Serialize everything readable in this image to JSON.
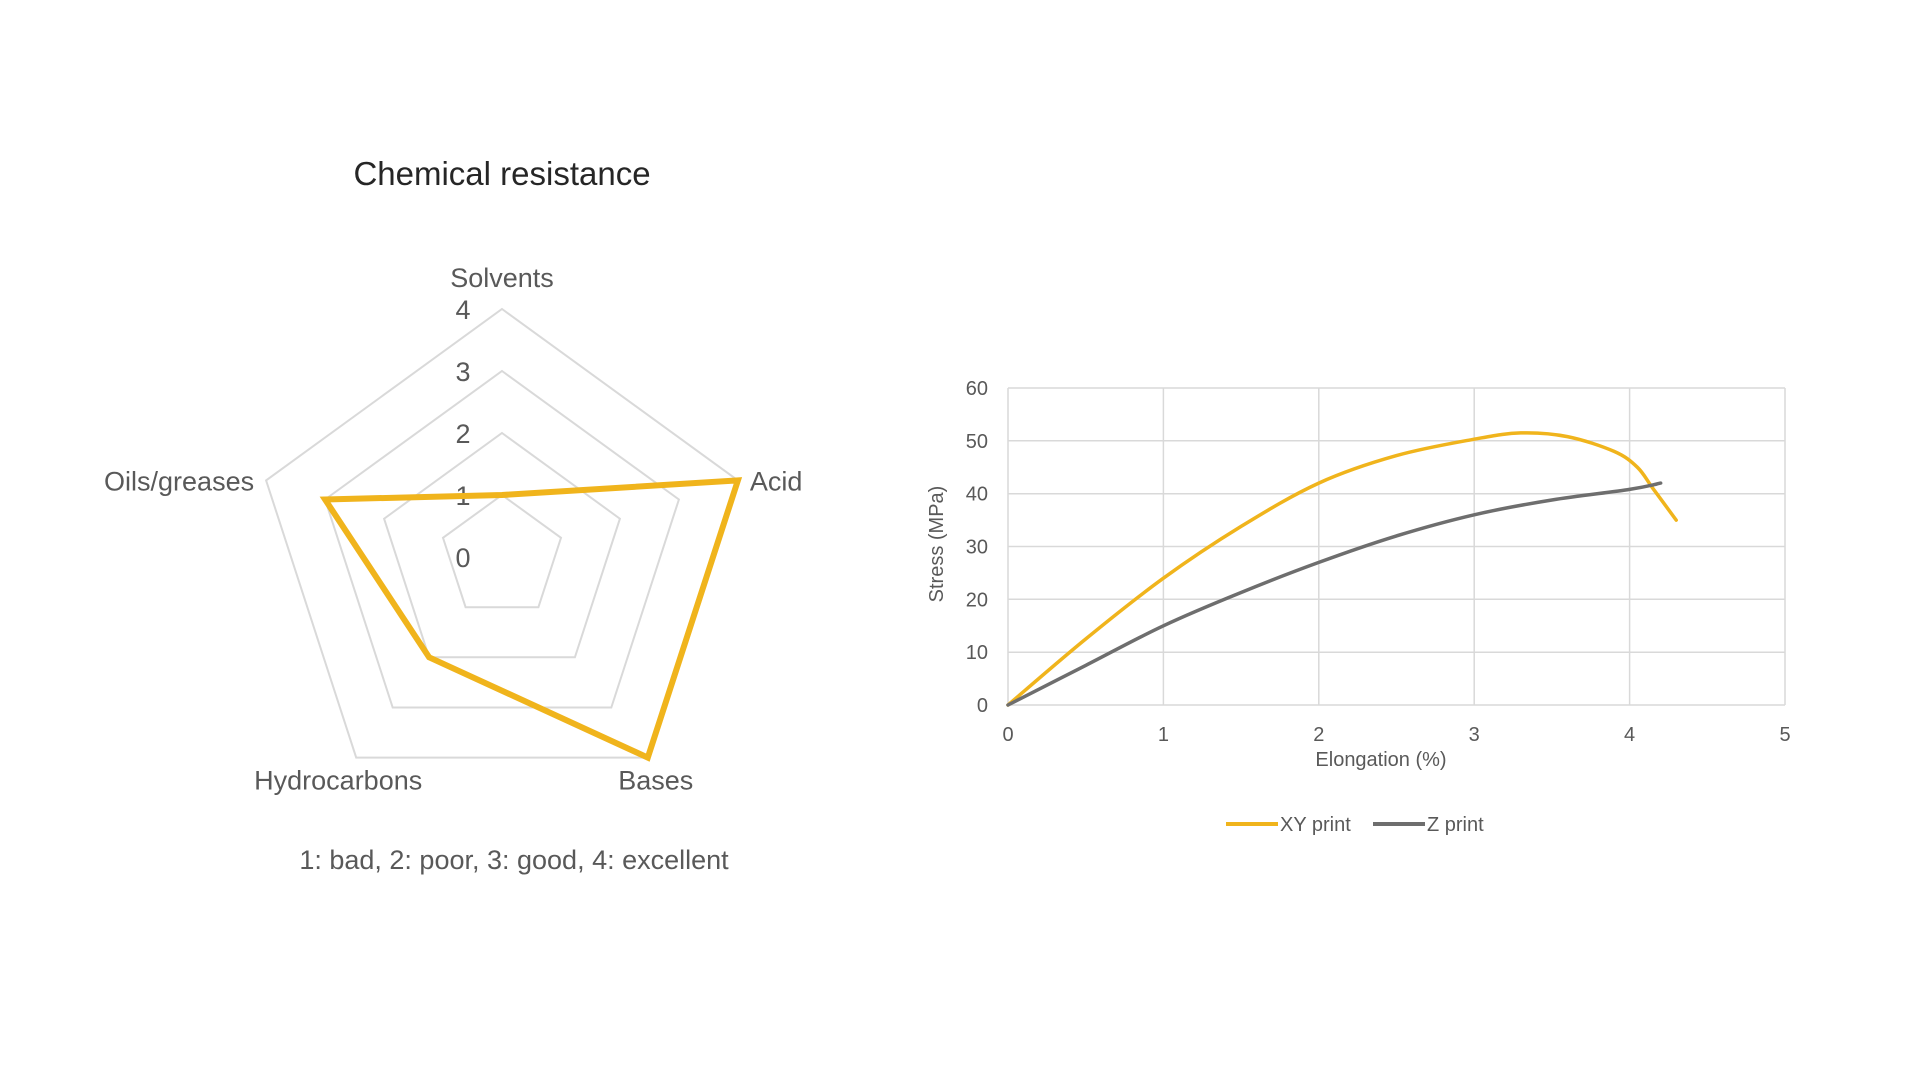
{
  "chart_data": [
    {
      "type": "radar",
      "title": "Chemical resistance",
      "categories": [
        "Solvents",
        "Acid",
        "Bases",
        "Hydrocarbons",
        "Oils/greases"
      ],
      "values": [
        1,
        4,
        4,
        2,
        3
      ],
      "r_ticks": [
        "0",
        "1",
        "2",
        "3",
        "4"
      ],
      "rlim": [
        0,
        4
      ],
      "note": "1: bad, 2: poor, 3: good, 4: excellent",
      "grid": true,
      "colors": {
        "series": "#f0b41c",
        "grid": "#d9d9d9"
      }
    },
    {
      "type": "line",
      "xlabel": "Elongation (%)",
      "ylabel": "Stress (MPa)",
      "xlim": [
        0,
        5
      ],
      "ylim": [
        0,
        60
      ],
      "x_ticks": [
        "0",
        "1",
        "2",
        "3",
        "4",
        "5"
      ],
      "y_ticks": [
        "0",
        "10",
        "20",
        "30",
        "40",
        "50",
        "60"
      ],
      "grid": true,
      "legend": "bottom",
      "series": [
        {
          "name": "XY print",
          "color": "#f0b41c",
          "points": [
            [
              0,
              0
            ],
            [
              0.5,
              12.5
            ],
            [
              1,
              24
            ],
            [
              1.5,
              33.8
            ],
            [
              2,
              42
            ],
            [
              2.5,
              47.2
            ],
            [
              3,
              50.3
            ],
            [
              3.3,
              51.5
            ],
            [
              3.6,
              50.8
            ],
            [
              3.9,
              48
            ],
            [
              4.05,
              45
            ],
            [
              4.15,
              41
            ],
            [
              4.3,
              35
            ]
          ]
        },
        {
          "name": "Z print",
          "color": "#6e6e6e",
          "points": [
            [
              0,
              0
            ],
            [
              0.5,
              7.5
            ],
            [
              1,
              15
            ],
            [
              1.5,
              21.3
            ],
            [
              2,
              27
            ],
            [
              2.5,
              32
            ],
            [
              3,
              36
            ],
            [
              3.5,
              38.8
            ],
            [
              4,
              40.8
            ],
            [
              4.2,
              42
            ]
          ]
        }
      ]
    }
  ]
}
